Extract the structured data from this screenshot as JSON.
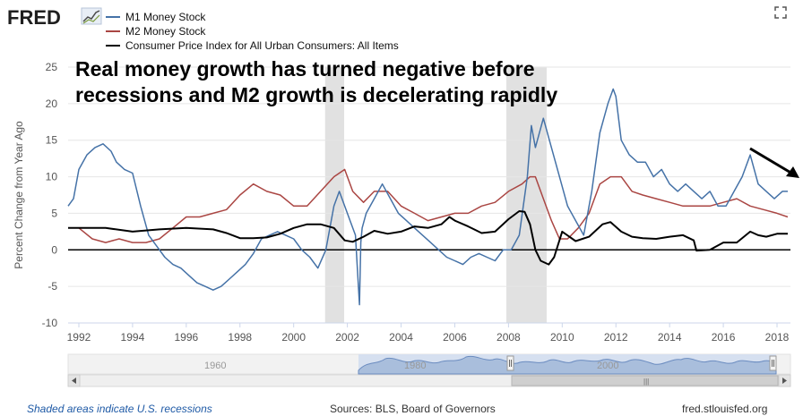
{
  "header": {
    "logo_text": "FRED",
    "logo_icon": "chart-trend-icon",
    "fullscreen_icon": "expand-icon"
  },
  "chart_data": {
    "type": "line",
    "title": "",
    "annotation": {
      "line1": "Real money growth has turned negative before",
      "line2": "recessions and M2 growth is decelerating rapidly"
    },
    "xlabel": "",
    "ylabel": "Percent Change from Year Ago",
    "xlim": [
      1991.6,
      2018.5
    ],
    "ylim": [
      -10,
      25
    ],
    "yticks": [
      -10,
      -5,
      0,
      5,
      10,
      15,
      20,
      25
    ],
    "xticks": [
      1992,
      1994,
      1996,
      1998,
      2000,
      2002,
      2004,
      2006,
      2008,
      2010,
      2012,
      2014,
      2016,
      2018
    ],
    "grid": true,
    "legend_position": "top-left",
    "recessions": [
      [
        2001.17,
        2001.88
      ],
      [
        2007.92,
        2009.42
      ]
    ],
    "series": [
      {
        "name": "M1 Money Stock",
        "color": "#4572a7",
        "x": [
          1991.6,
          1991.8,
          1992.0,
          1992.3,
          1992.6,
          1992.9,
          1993.2,
          1993.4,
          1993.7,
          1994.0,
          1994.3,
          1994.6,
          1994.9,
          1995.2,
          1995.5,
          1995.8,
          1996.1,
          1996.4,
          1996.7,
          1997.0,
          1997.3,
          1997.6,
          1997.9,
          1998.2,
          1998.5,
          1998.8,
          1999.1,
          1999.4,
          1999.7,
          2000.0,
          2000.3,
          2000.6,
          2000.9,
          2001.2,
          2001.5,
          2001.7,
          2001.9,
          2002.1,
          2002.3,
          2002.45,
          2002.5,
          2002.55,
          2002.7,
          2003.0,
          2003.3,
          2003.6,
          2003.9,
          2004.2,
          2004.5,
          2004.8,
          2005.1,
          2005.4,
          2005.7,
          2006.0,
          2006.3,
          2006.6,
          2006.9,
          2007.2,
          2007.5,
          2007.8,
          2008.1,
          2008.4,
          2008.7,
          2008.85,
          2009.0,
          2009.3,
          2009.6,
          2009.9,
          2010.2,
          2010.5,
          2010.8,
          2011.1,
          2011.4,
          2011.7,
          2011.9,
          2012.0,
          2012.2,
          2012.5,
          2012.8,
          2013.1,
          2013.4,
          2013.7,
          2014.0,
          2014.3,
          2014.6,
          2014.9,
          2015.2,
          2015.5,
          2015.8,
          2016.1,
          2016.4,
          2016.7,
          2017.0,
          2017.3,
          2017.6,
          2017.9,
          2018.2,
          2018.4
        ],
        "values": [
          6,
          7,
          11,
          13,
          14,
          14.5,
          13.5,
          12,
          11,
          10.5,
          6,
          2,
          0.5,
          -1,
          -2,
          -2.5,
          -3.5,
          -4.5,
          -5,
          -5.5,
          -5,
          -4,
          -3,
          -2,
          -0.5,
          1.5,
          2,
          2.5,
          2,
          1.5,
          0,
          -1,
          -2.5,
          0,
          6,
          8,
          6,
          4,
          2,
          -7.5,
          1,
          3,
          5,
          7,
          9,
          7,
          5,
          4,
          3,
          2,
          1,
          0,
          -1,
          -1.5,
          -2,
          -1,
          -0.5,
          -1,
          -1.5,
          0,
          0,
          2,
          10,
          17,
          14,
          18,
          14,
          10,
          6,
          4,
          2,
          8,
          16,
          20,
          22,
          21,
          15,
          13,
          12,
          12,
          10,
          11,
          9,
          8,
          9,
          8,
          7,
          8,
          6,
          6,
          8,
          10,
          13,
          9,
          8,
          7,
          8,
          8
        ]
      },
      {
        "name": "M2 Money Stock",
        "color": "#aa4643",
        "x": [
          1991.6,
          1992.0,
          1992.5,
          1993.0,
          1993.5,
          1994.0,
          1994.5,
          1995.0,
          1995.5,
          1996.0,
          1996.5,
          1997.0,
          1997.5,
          1998.0,
          1998.5,
          1999.0,
          1999.5,
          2000.0,
          2000.5,
          2001.0,
          2001.5,
          2001.9,
          2002.2,
          2002.6,
          2003.0,
          2003.5,
          2004.0,
          2004.5,
          2005.0,
          2005.5,
          2006.0,
          2006.5,
          2007.0,
          2007.5,
          2008.0,
          2008.5,
          2008.8,
          2009.0,
          2009.3,
          2009.6,
          2009.9,
          2010.2,
          2010.6,
          2011.0,
          2011.4,
          2011.8,
          2012.2,
          2012.6,
          2013.0,
          2013.5,
          2014.0,
          2014.5,
          2015.0,
          2015.5,
          2016.0,
          2016.5,
          2017.0,
          2017.5,
          2018.0,
          2018.4
        ],
        "values": [
          3,
          3,
          1.5,
          1,
          1.5,
          1,
          1,
          1.5,
          3,
          4.5,
          4.5,
          5,
          5.5,
          7.5,
          9,
          8,
          7.5,
          6,
          6,
          8,
          10,
          11,
          8,
          6.5,
          8,
          8,
          6,
          5,
          4,
          4.5,
          5,
          5,
          6,
          6.5,
          8,
          9,
          10,
          10,
          7,
          4,
          1.5,
          1.5,
          3,
          5,
          9,
          10,
          10,
          8,
          7.5,
          7,
          6.5,
          6,
          6,
          6,
          6.5,
          7,
          6,
          5.5,
          5,
          4.5
        ]
      },
      {
        "name": "Consumer Price Index for All Urban Consumers: All Items",
        "color": "#000000",
        "x": [
          1991.6,
          1992.0,
          1993.0,
          1994.0,
          1995.0,
          1996.0,
          1997.0,
          1997.5,
          1998.0,
          1998.5,
          1999.0,
          1999.5,
          2000.0,
          2000.5,
          2001.0,
          2001.5,
          2001.9,
          2002.2,
          2002.6,
          2003.0,
          2003.5,
          2004.0,
          2004.5,
          2005.0,
          2005.5,
          2005.8,
          2006.0,
          2006.5,
          2007.0,
          2007.5,
          2008.0,
          2008.4,
          2008.6,
          2008.8,
          2009.0,
          2009.2,
          2009.5,
          2009.7,
          2010.0,
          2010.5,
          2011.0,
          2011.5,
          2011.8,
          2012.2,
          2012.6,
          2013.0,
          2013.5,
          2014.0,
          2014.5,
          2014.9,
          2015.0,
          2015.5,
          2016.0,
          2016.5,
          2017.0,
          2017.3,
          2017.6,
          2018.0,
          2018.4
        ],
        "values": [
          3,
          3,
          3,
          2.5,
          2.8,
          3,
          2.8,
          2.3,
          1.6,
          1.6,
          1.7,
          2.2,
          3,
          3.5,
          3.5,
          3,
          1.3,
          1.1,
          1.8,
          2.6,
          2.2,
          2.5,
          3.2,
          3,
          3.5,
          4.5,
          4,
          3.2,
          2.3,
          2.5,
          4.2,
          5.3,
          5.2,
          3.5,
          0,
          -1.5,
          -2,
          -1,
          2.5,
          1.2,
          1.8,
          3.5,
          3.8,
          2.5,
          1.8,
          1.6,
          1.5,
          1.8,
          2,
          1.3,
          -0.1,
          0,
          1,
          1,
          2.5,
          2,
          1.8,
          2.2,
          2.2
        ]
      }
    ],
    "legend_entries": [
      "M1 Money Stock",
      "M2 Money Stock",
      "Consumer Price Index for All Urban Consumers: All Items"
    ]
  },
  "navigator": {
    "label_1960": "1960",
    "label_1980": "1980",
    "label_2000": "2000",
    "scroll_left_icon": "arrow-left-icon",
    "scroll_right_icon": "arrow-right-icon",
    "grip_glyph": "|||"
  },
  "footer": {
    "recession_note": "Shaded areas indicate U.S. recessions",
    "sources": "Sources: BLS, Board of Governors",
    "site": "fred.stlouisfed.org"
  }
}
